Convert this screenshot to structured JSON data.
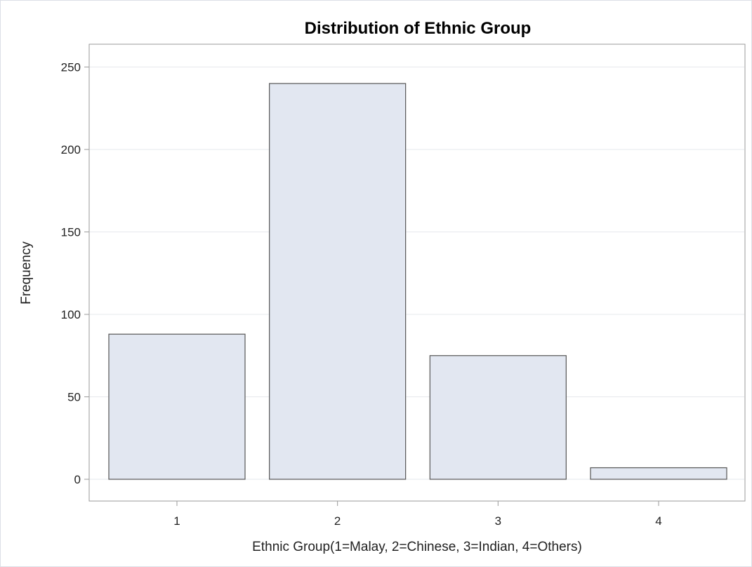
{
  "chart_data": {
    "type": "bar",
    "title": "Distribution of Ethnic Group",
    "xlabel": "Ethnic Group(1=Malay, 2=Chinese, 3=Indian, 4=Others)",
    "ylabel": "Frequency",
    "categories": [
      "1",
      "2",
      "3",
      "4"
    ],
    "values": [
      88,
      240,
      75,
      7
    ],
    "ylim": [
      0,
      264
    ],
    "yticks": [
      0,
      50,
      100,
      150,
      200,
      250
    ],
    "ytick_labels": [
      "0",
      "50",
      "100",
      "150",
      "200",
      "250"
    ],
    "grid": true,
    "colors": {
      "bar_fill": "#e2e7f1",
      "bar_stroke": "#555555",
      "grid": "#e6e8ec",
      "axis": "#9a9a9a"
    }
  }
}
